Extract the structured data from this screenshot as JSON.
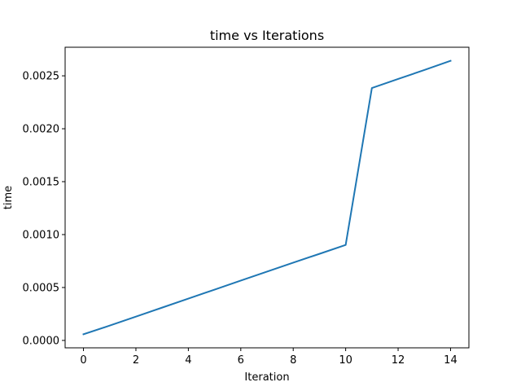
{
  "chart_data": {
    "type": "line",
    "title": "time vs Iterations",
    "xlabel": "Iteration",
    "ylabel": "time",
    "xlim": [
      -0.7,
      14.7
    ],
    "ylim": [
      -7e-05,
      0.00277
    ],
    "xticks": [
      0,
      2,
      4,
      6,
      8,
      10,
      12,
      14
    ],
    "xtick_labels": [
      "0",
      "2",
      "4",
      "6",
      "8",
      "10",
      "12",
      "14"
    ],
    "yticks": [
      0.0,
      0.0005,
      0.001,
      0.0015,
      0.002,
      0.0025
    ],
    "ytick_labels": [
      "0.0000",
      "0.0005",
      "0.0010",
      "0.0015",
      "0.0020",
      "0.0025"
    ],
    "grid": false,
    "series": [
      {
        "color": "#1f77b4",
        "x": [
          0,
          1,
          2,
          3,
          4,
          5,
          6,
          7,
          8,
          9,
          10,
          11,
          12,
          13,
          14
        ],
        "y": [
          5.8e-05,
          0.00014,
          0.000225,
          0.00031,
          0.000395,
          0.00048,
          0.000565,
          0.00065,
          0.000735,
          0.000818,
          0.000902,
          0.002385,
          0.00247,
          0.002555,
          0.002642
        ]
      }
    ]
  }
}
